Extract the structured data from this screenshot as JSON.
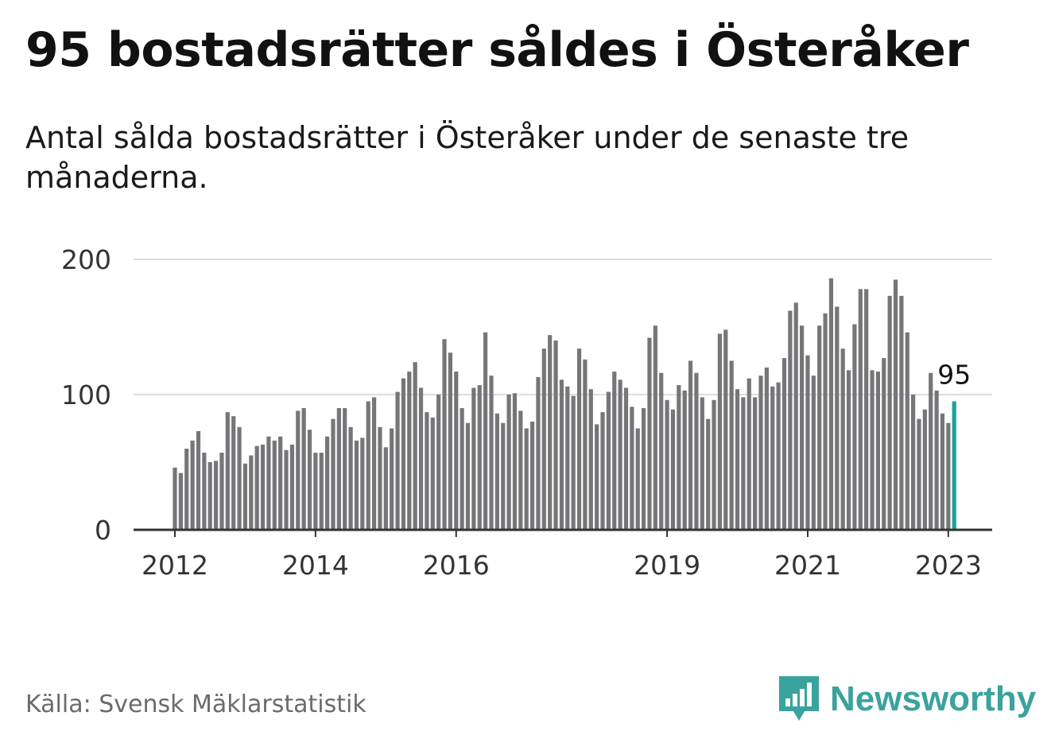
{
  "title": "95 bostadsrätter såldes i Österåker",
  "subtitle": "Antal sålda bostadsrätter i Österåker under de senaste tre månaderna.",
  "source": "Källa: Svensk Mäklarstatistik",
  "brand": "Newsworthy",
  "colors": {
    "bar": "#767578",
    "highlight": "#1aa39a",
    "grid": "#dddddd",
    "axis": "#333333",
    "brand": "#3aa39d"
  },
  "chart_data": {
    "type": "bar",
    "ylim": [
      0,
      200
    ],
    "y_ticks": [
      {
        "value": 0,
        "label": "0"
      },
      {
        "value": 100,
        "label": "100"
      },
      {
        "value": 200,
        "label": "200"
      }
    ],
    "x_ticks": [
      {
        "index": 0,
        "label": "2012"
      },
      {
        "index": 24,
        "label": "2014"
      },
      {
        "index": 48,
        "label": "2016"
      },
      {
        "index": 84,
        "label": "2019"
      },
      {
        "index": 108,
        "label": "2021"
      },
      {
        "index": 132,
        "label": "2023"
      }
    ],
    "values": [
      46,
      42,
      60,
      66,
      73,
      57,
      50,
      51,
      57,
      87,
      84,
      76,
      49,
      55,
      62,
      63,
      69,
      66,
      69,
      59,
      63,
      88,
      90,
      74,
      57,
      57,
      69,
      82,
      90,
      90,
      76,
      66,
      68,
      95,
      98,
      76,
      61,
      75,
      102,
      112,
      117,
      124,
      105,
      87,
      83,
      100,
      141,
      131,
      117,
      90,
      79,
      105,
      107,
      146,
      114,
      86,
      79,
      100,
      101,
      88,
      75,
      80,
      113,
      134,
      144,
      140,
      111,
      106,
      99,
      134,
      126,
      104,
      78,
      87,
      102,
      117,
      111,
      105,
      91,
      75,
      90,
      142,
      151,
      116,
      96,
      89,
      107,
      103,
      125,
      116,
      98,
      82,
      96,
      145,
      148,
      125,
      104,
      98,
      112,
      98,
      114,
      120,
      106,
      109,
      127,
      162,
      168,
      151,
      129,
      114,
      151,
      160,
      186,
      165,
      134,
      118,
      152,
      178,
      178,
      118,
      117,
      127,
      173,
      185,
      173,
      146,
      100,
      82,
      89,
      116,
      103,
      86,
      79,
      95
    ],
    "highlight_index": 133,
    "highlight_label": "95"
  }
}
